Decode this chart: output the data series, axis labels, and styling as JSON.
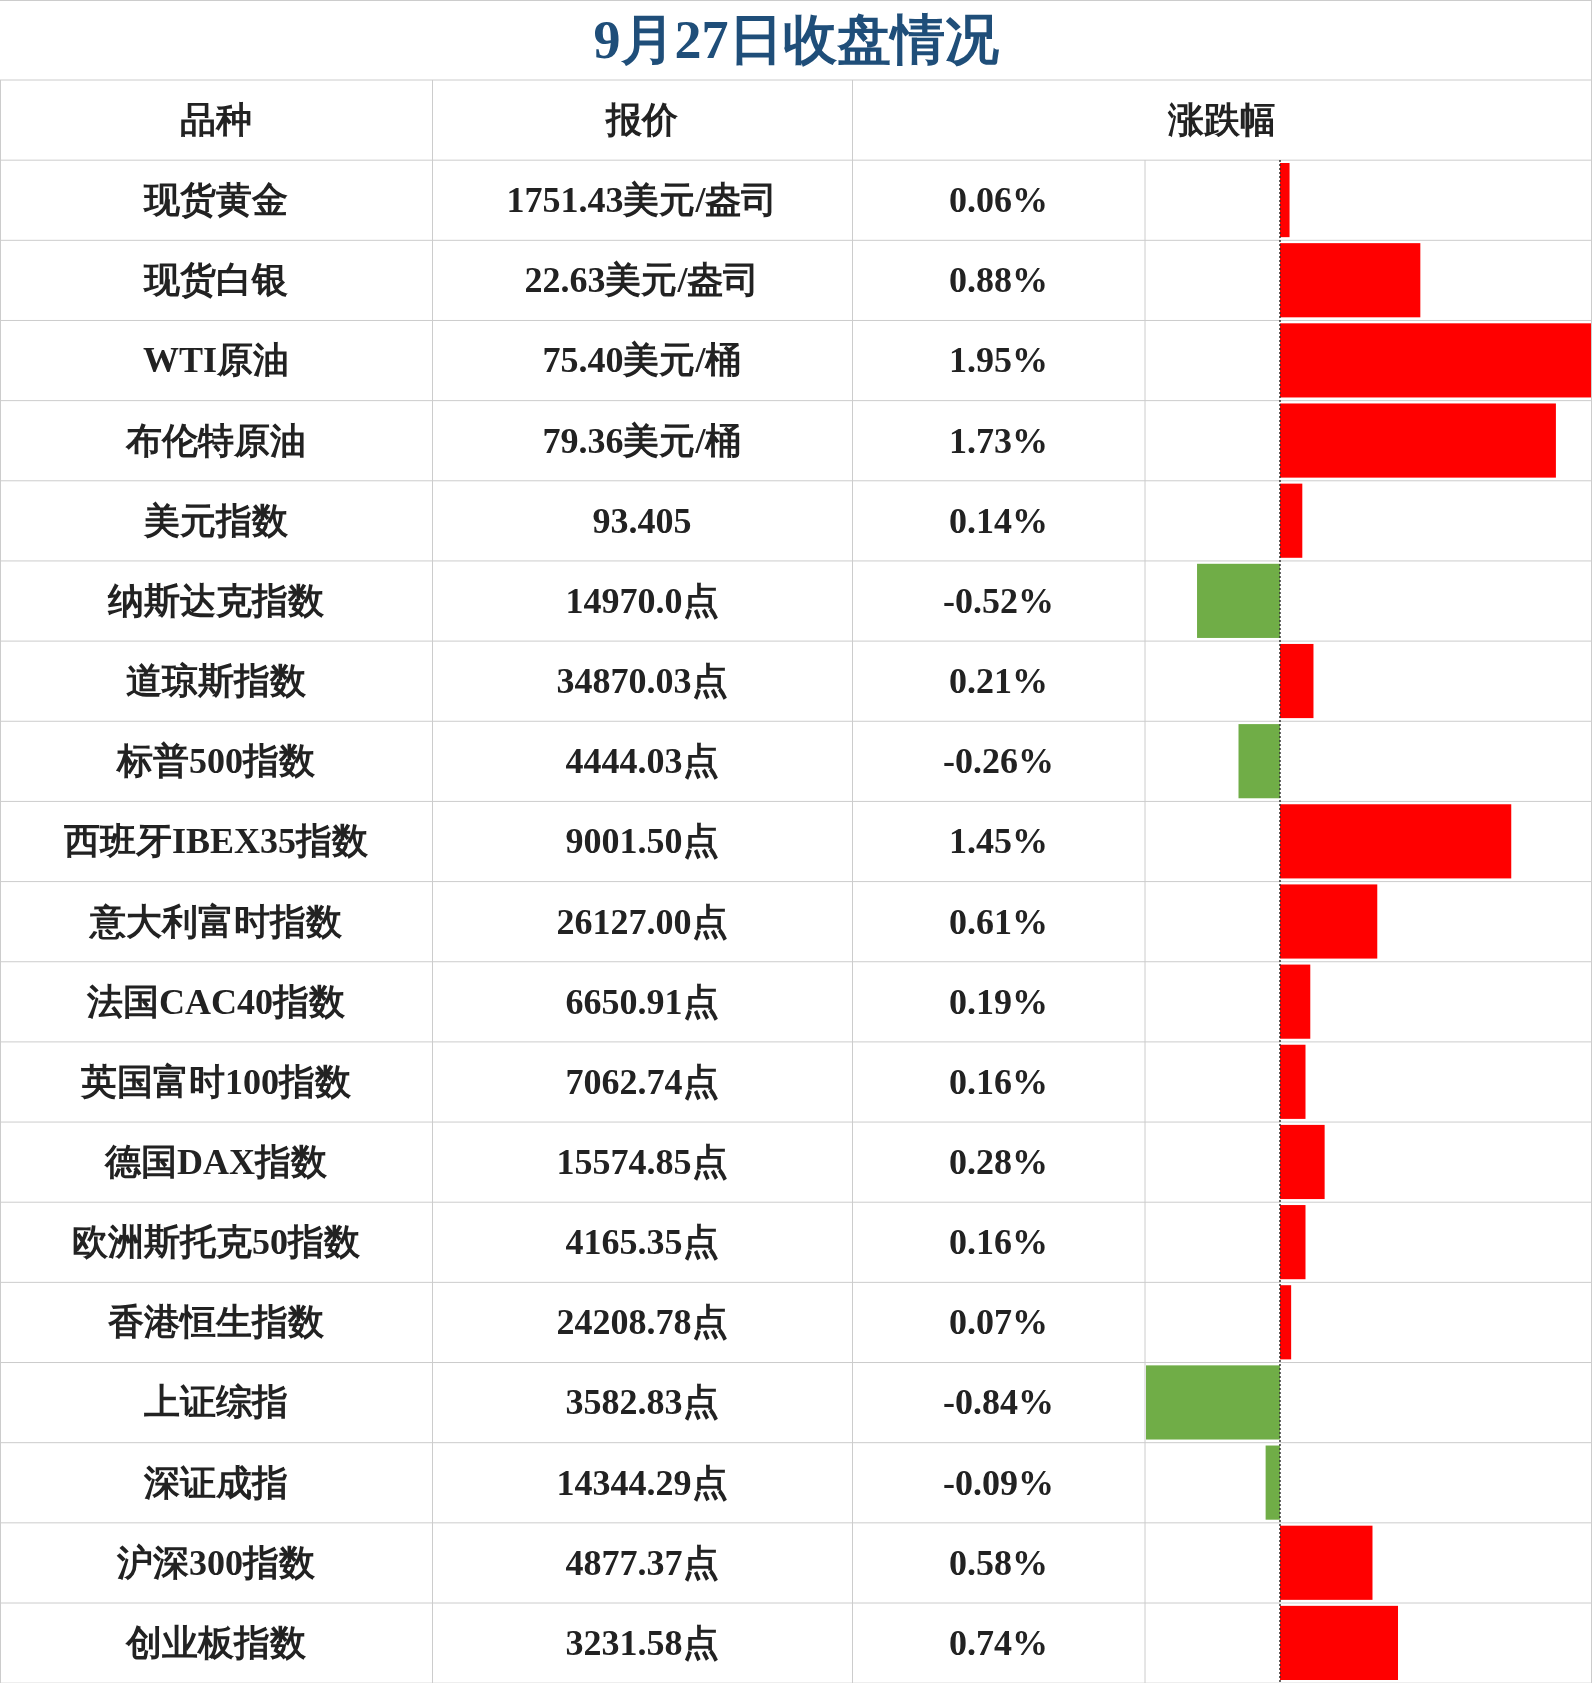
{
  "chart_data": {
    "type": "bar",
    "orientation": "horizontal",
    "title": "9月27日收盘情况",
    "ylabel": "品种",
    "xlabel": "涨跌幅",
    "categories": [
      "现货黄金",
      "现货白银",
      "WTI原油",
      "布伦特原油",
      "美元指数",
      "纳斯达克指数",
      "道琼斯指数",
      "标普500指数",
      "西班牙IBEX35指数",
      "意大利富时指数",
      "法国CAC40指数",
      "英国富时100指数",
      "德国DAX指数",
      "欧洲斯托克50指数",
      "香港恒生指数",
      "上证综指",
      "深证成指",
      "沪深300指数",
      "创业板指数"
    ],
    "values": [
      0.06,
      0.88,
      1.95,
      1.73,
      0.14,
      -0.52,
      0.21,
      -0.26,
      1.45,
      0.61,
      0.19,
      0.16,
      0.28,
      0.16,
      0.07,
      -0.84,
      -0.09,
      0.58,
      0.74
    ],
    "value_labels": [
      "0.06%",
      "0.88%",
      "1.95%",
      "1.73%",
      "0.14%",
      "-0.52%",
      "0.21%",
      "-0.26%",
      "1.45%",
      "0.61%",
      "0.19%",
      "0.16%",
      "0.28%",
      "0.16%",
      "0.07%",
      "-0.84%",
      "-0.09%",
      "0.58%",
      "0.74%"
    ],
    "colors": [
      "#ff0000",
      "#ff0000",
      "#ff0000",
      "#ff0000",
      "#ff0000",
      "#70ad47",
      "#ff0000",
      "#70ad47",
      "#ff0000",
      "#ff0000",
      "#ff0000",
      "#ff0000",
      "#ff0000",
      "#ff0000",
      "#ff0000",
      "#70ad47",
      "#70ad47",
      "#ff0000",
      "#ff0000"
    ],
    "ref_lines": [
      {
        "axis": "x",
        "value": 0,
        "color": "#333333",
        "line_style": "dotted"
      }
    ],
    "annotations": [
      "报价",
      "1751.43美元/盎司",
      "22.63美元/盎司",
      "75.40美元/桶",
      "79.36美元/桶",
      "93.405",
      "14970.0点",
      "34870.03点",
      "4444.03点",
      "9001.50点",
      "26127.00点",
      "6650.91点",
      "7062.74点",
      "15574.85点",
      "4165.35点",
      "24208.78点",
      "3582.83点",
      "14344.29点",
      "4877.37点",
      "3231.58点"
    ]
  }
}
